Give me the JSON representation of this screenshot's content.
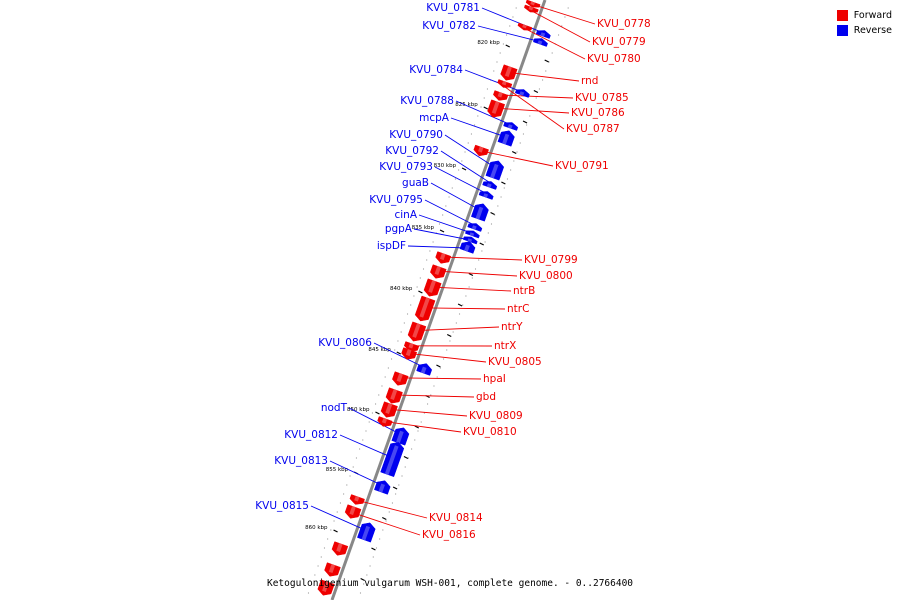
{
  "caption": "Ketogulonigenium vulgarum WSH-001, complete genome. - 0..2766400",
  "legend": [
    {
      "label": "Forward",
      "color": "#ee0000"
    },
    {
      "label": "Reverse",
      "color": "#0000ee"
    }
  ],
  "colors": {
    "forward": "#ee0000",
    "reverse": "#0000ee",
    "backbone": "#888888"
  },
  "scale_ticks": [
    {
      "label": "820 kbp"
    },
    {
      "label": "825 kbp"
    },
    {
      "label": "830 kbp"
    },
    {
      "label": "835 kbp"
    },
    {
      "label": "840 kbp"
    },
    {
      "label": "845 kbp"
    },
    {
      "label": "850 kbp"
    },
    {
      "label": "855 kbp"
    },
    {
      "label": "860 kbp"
    }
  ],
  "genes": [
    {
      "name": "KVU_0778",
      "strand": "forward"
    },
    {
      "name": "KVU_0779",
      "strand": "forward"
    },
    {
      "name": "KVU_0780",
      "strand": "forward"
    },
    {
      "name": "rnd",
      "strand": "forward"
    },
    {
      "name": "KVU_0785",
      "strand": "forward"
    },
    {
      "name": "KVU_0786",
      "strand": "forward"
    },
    {
      "name": "KVU_0787",
      "strand": "forward"
    },
    {
      "name": "KVU_0791",
      "strand": "forward"
    },
    {
      "name": "KVU_0799",
      "strand": "forward"
    },
    {
      "name": "KVU_0800",
      "strand": "forward"
    },
    {
      "name": "ntrB",
      "strand": "forward"
    },
    {
      "name": "ntrC",
      "strand": "forward"
    },
    {
      "name": "ntrY",
      "strand": "forward"
    },
    {
      "name": "ntrX",
      "strand": "forward"
    },
    {
      "name": "KVU_0805",
      "strand": "forward"
    },
    {
      "name": "hpaI",
      "strand": "forward"
    },
    {
      "name": "gbd",
      "strand": "forward"
    },
    {
      "name": "KVU_0809",
      "strand": "forward"
    },
    {
      "name": "KVU_0810",
      "strand": "forward"
    },
    {
      "name": "KVU_0814",
      "strand": "forward"
    },
    {
      "name": "KVU_0816",
      "strand": "forward"
    },
    {
      "name": "KVU_0781",
      "strand": "reverse"
    },
    {
      "name": "KVU_0782",
      "strand": "reverse"
    },
    {
      "name": "KVU_0784",
      "strand": "reverse"
    },
    {
      "name": "KVU_0788",
      "strand": "reverse"
    },
    {
      "name": "mcpA",
      "strand": "reverse"
    },
    {
      "name": "KVU_0790",
      "strand": "reverse"
    },
    {
      "name": "KVU_0792",
      "strand": "reverse"
    },
    {
      "name": "KVU_0793",
      "strand": "reverse"
    },
    {
      "name": "guaB",
      "strand": "reverse"
    },
    {
      "name": "KVU_0795",
      "strand": "reverse"
    },
    {
      "name": "cinA",
      "strand": "reverse"
    },
    {
      "name": "pgpA",
      "strand": "reverse"
    },
    {
      "name": "ispDF",
      "strand": "reverse"
    },
    {
      "name": "KVU_0806",
      "strand": "reverse"
    },
    {
      "name": "nodT",
      "strand": "reverse"
    },
    {
      "name": "KVU_0812",
      "strand": "reverse"
    },
    {
      "name": "KVU_0813",
      "strand": "reverse"
    },
    {
      "name": "KVU_0815",
      "strand": "reverse"
    }
  ]
}
